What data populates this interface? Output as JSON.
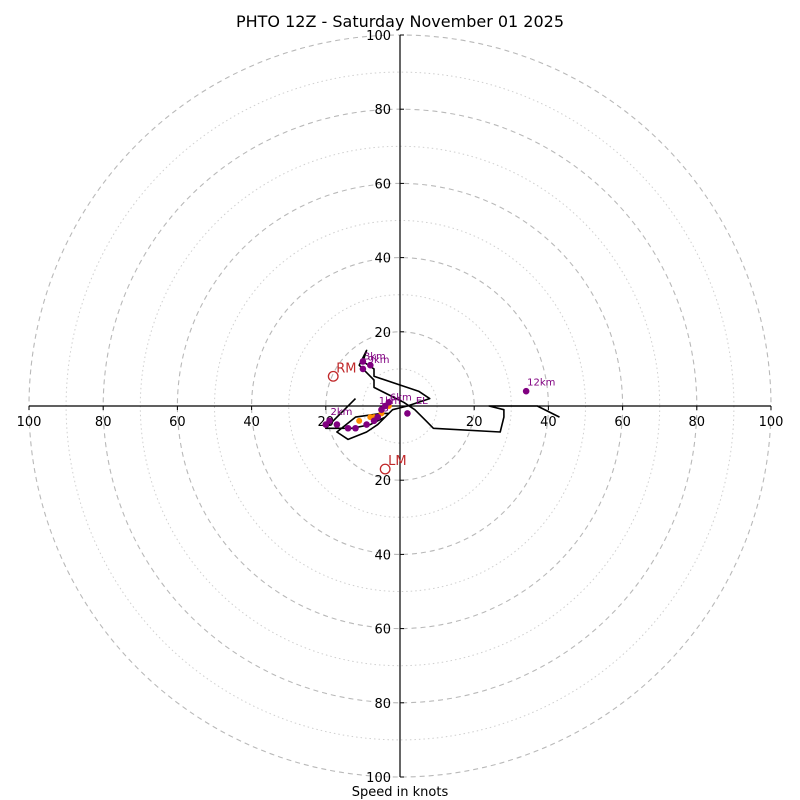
{
  "chart_data": {
    "type": "hodograph",
    "title": "PHTO 12Z - Saturday November 01 2025",
    "xlabel": "Speed in knots",
    "units": "knots",
    "rings": {
      "major": [
        20,
        40,
        60,
        80,
        100
      ],
      "minor": [
        10,
        30,
        50,
        70,
        90
      ],
      "max": 100
    },
    "ticks": {
      "values": [
        20,
        40,
        60,
        80,
        100
      ],
      "x_labels": [
        "20",
        "40",
        "60",
        "80",
        "100"
      ],
      "y_labels": [
        "20",
        "40",
        "60",
        "80",
        "100"
      ]
    },
    "hodograph_trace": [
      [
        -12,
        2
      ],
      [
        -19,
        -5
      ],
      [
        -20,
        -6
      ],
      [
        -13,
        -6
      ],
      [
        -8,
        -5
      ],
      [
        -6,
        -4
      ],
      [
        -4,
        -3
      ],
      [
        -3,
        -2
      ],
      [
        -5,
        -2
      ],
      [
        -12,
        -3
      ],
      [
        -17,
        -7
      ],
      [
        -14,
        -9
      ],
      [
        -9,
        -7
      ],
      [
        -6,
        -5
      ],
      [
        -4,
        -3
      ],
      [
        -2,
        -1
      ],
      [
        2,
        0
      ],
      [
        5,
        1
      ],
      [
        8,
        2
      ],
      [
        5,
        4
      ],
      [
        -7,
        8
      ],
      [
        -7,
        10
      ],
      [
        -10,
        12
      ],
      [
        -9,
        15
      ],
      [
        -11,
        11
      ],
      [
        -8,
        8
      ],
      [
        -7,
        7
      ],
      [
        -7,
        5
      ],
      [
        -3,
        3
      ],
      [
        1,
        1
      ],
      [
        4,
        -1
      ],
      [
        7,
        -4
      ],
      [
        9,
        -6
      ],
      [
        27,
        -7
      ],
      [
        28,
        -3
      ],
      [
        28,
        -1
      ],
      [
        24,
        0
      ],
      [
        37,
        0
      ],
      [
        43,
        -3
      ]
    ],
    "height_markers": [
      {
        "label": "3km",
        "u": -10,
        "v": 12
      },
      {
        "label": "9km",
        "u": -8,
        "v": 11
      },
      {
        "label": "12km",
        "u": 34,
        "v": 4
      },
      {
        "label": "6km",
        "u": -3,
        "v": 1
      },
      {
        "label": "",
        "u": -5,
        "v": -1
      },
      {
        "label": "",
        "u": -4,
        "v": 0
      },
      {
        "label": "",
        "u": -6,
        "v": -3
      },
      {
        "label": "",
        "u": -7,
        "v": -4
      },
      {
        "label": "2km",
        "u": -19,
        "v": -4
      },
      {
        "label": "",
        "u": -20,
        "v": -5
      },
      {
        "label": "",
        "u": -17,
        "v": -5
      },
      {
        "label": "",
        "u": -14,
        "v": -6
      },
      {
        "label": "",
        "u": -12,
        "v": -6
      },
      {
        "label": "",
        "u": -9,
        "v": -5
      },
      {
        "label": "",
        "u": 2,
        "v": -2
      },
      {
        "label": "",
        "u": -10,
        "v": 10
      }
    ],
    "effective_layer_points": [
      {
        "u": -11,
        "v": -4
      },
      {
        "u": -8,
        "v": -3
      },
      {
        "u": -5,
        "v": -2
      },
      {
        "u": -7,
        "v": -3
      },
      {
        "u": -3,
        "v": 0
      }
    ],
    "storm_motion": [
      {
        "label": "RM",
        "u": -18,
        "v": 8
      },
      {
        "label": "LM",
        "u": -4,
        "v": -17
      }
    ],
    "annotations": [
      {
        "label": "3km",
        "u": -10,
        "v": 12
      },
      {
        "label": "9km",
        "u": -9,
        "v": 11
      },
      {
        "label": "12km",
        "u": 34,
        "v": 5
      },
      {
        "label": "6km",
        "u": -3,
        "v": 1
      },
      {
        "label": "2km",
        "u": -19,
        "v": -3
      },
      {
        "label": "1km",
        "u": -6,
        "v": 0
      },
      {
        "label": "3",
        "u": -5,
        "v": -2
      },
      {
        "label": "EL",
        "u": 4,
        "v": 0
      }
    ],
    "colors": {
      "trace": "#000000",
      "height_marker": "#800080",
      "height_label": "#800080",
      "effective_layer": "#ff8c00",
      "storm_motion": "#c0282a"
    }
  }
}
